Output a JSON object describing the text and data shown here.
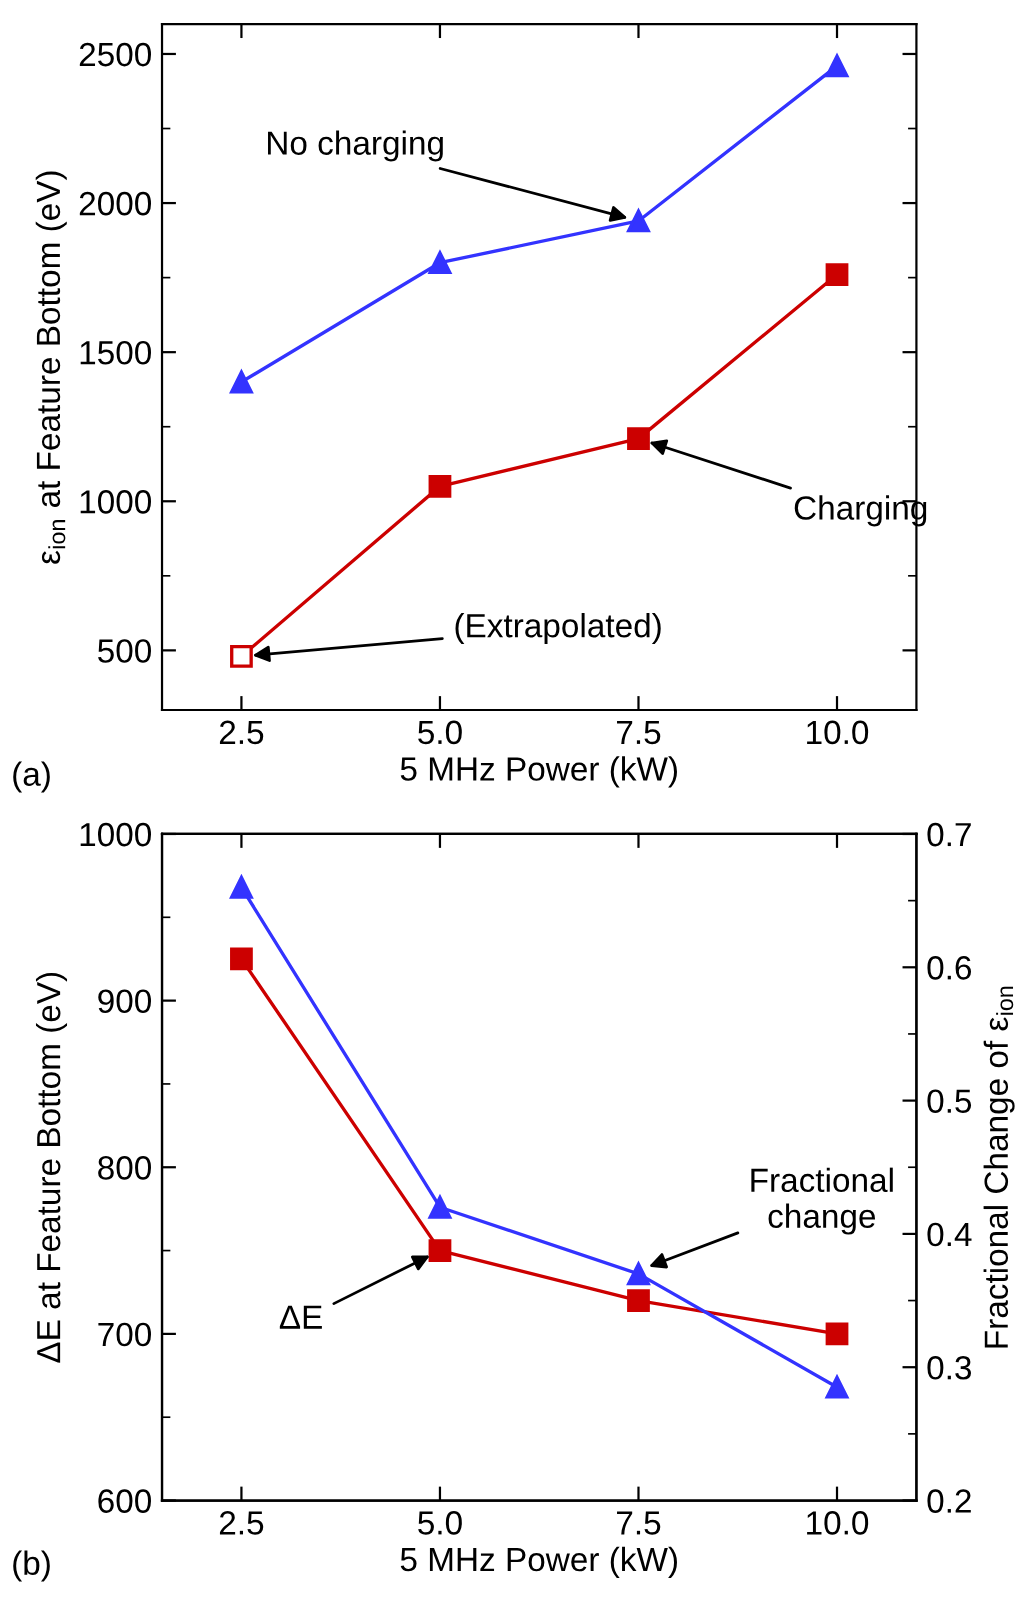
{
  "chart_data": [
    {
      "type": "line",
      "xlabel": "5 MHz Power (kW)",
      "ylabel": "ε$_{ion}$ at Feature Bottom (eV)",
      "x": [
        2.5,
        5.0,
        7.5,
        10.0
      ],
      "xlim": [
        1.5,
        11
      ],
      "xticks": [
        {
          "value": 2.5,
          "label": "2.5"
        },
        {
          "value": 5.0,
          "label": "5.0"
        },
        {
          "value": 7.5,
          "label": "7.5"
        },
        {
          "value": 10.0,
          "label": "10.0"
        }
      ],
      "ylim": [
        300,
        2600
      ],
      "yticks": [
        500,
        1000,
        1500,
        2000,
        2500
      ],
      "grid": false,
      "legend": false,
      "series": [
        {
          "color": "#3333ff",
          "marker": "triangle",
          "values": [
            1400,
            1800,
            1940,
            2460
          ]
        },
        {
          "color": "#cc0000",
          "marker": "square",
          "values": [
            480,
            1050,
            1210,
            1760
          ],
          "colors": [
            "#ffffff",
            "#cc0000",
            "#cc0000",
            "#cc0000"
          ]
        }
      ],
      "annotations": [
        {
          "text": "No charging",
          "x": 7.5,
          "y": 1940
        },
        {
          "text": "Charging",
          "x": 7.5,
          "y": 1210
        },
        {
          "text": "(Extrapolated)",
          "x": 2.5,
          "y": 480
        },
        "(a)"
      ]
    },
    {
      "type": "line",
      "xlabel": "5 MHz Power (kW)",
      "ylabel": "ΔE at Feature Bottom (eV)",
      "y2label": "Fractional Change of ε$_{ion}$",
      "x": [
        2.5,
        5.0,
        7.5,
        10.0
      ],
      "xlim": [
        1.5,
        11
      ],
      "xticks": [
        {
          "value": 2.5,
          "label": "2.5"
        },
        {
          "value": 5.0,
          "label": "5.0"
        },
        {
          "value": 7.5,
          "label": "7.5"
        },
        {
          "value": 10.0,
          "label": "10.0"
        }
      ],
      "ylim": [
        600,
        1000
      ],
      "yticks": [
        600,
        700,
        800,
        900,
        1000
      ],
      "y2lim": [
        0.2,
        0.7
      ],
      "y2ticks": [
        0.2,
        0.3,
        0.4,
        0.5,
        0.6,
        0.7
      ],
      "grid": false,
      "legend": false,
      "series": [
        {
          "color": "#cc0000",
          "marker": "square",
          "values": [
            925,
            750,
            720,
            700
          ]
        },
        {
          "color": "#3333ff",
          "marker": "triangle",
          "axis": "y2",
          "values": [
            0.66,
            0.42,
            0.37,
            0.285
          ]
        }
      ],
      "annotations": [
        {
          "text": "ΔE",
          "x": 5.0,
          "y": 750
        },
        {
          "text": "Fractional\nchange",
          "x": 7.5,
          "y": 738
        },
        "(b)"
      ]
    }
  ]
}
